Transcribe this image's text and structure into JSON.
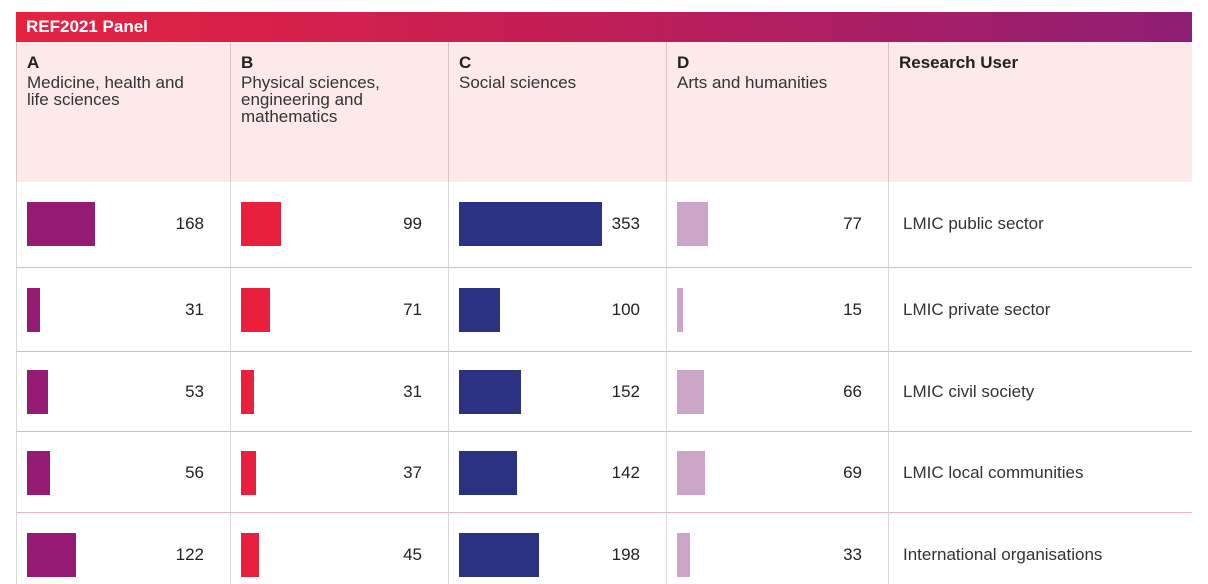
{
  "header": {
    "title": "REF2021 Panel"
  },
  "table": {
    "columns": [
      {
        "letter": "A",
        "name": "Medicine, health and life sciences",
        "color": "#951b74"
      },
      {
        "letter": "B",
        "name": "Physical sciences, engineering and mathematics",
        "color": "#e8203d"
      },
      {
        "letter": "C",
        "name": "Social sciences",
        "color": "#2b3183"
      },
      {
        "letter": "D",
        "name": "Arts and humanities",
        "color": "#cda5c8"
      }
    ],
    "user_header": "Research User",
    "rows": [
      {
        "values": [
          168,
          99,
          353,
          77
        ],
        "user": "LMIC public sector"
      },
      {
        "values": [
          31,
          71,
          100,
          15
        ],
        "user": "LMIC private sector"
      },
      {
        "values": [
          53,
          31,
          152,
          66
        ],
        "user": "LMIC civil society"
      },
      {
        "values": [
          56,
          37,
          142,
          69
        ],
        "user": "LMIC local communities"
      },
      {
        "values": [
          122,
          45,
          198,
          33
        ],
        "user": "International organisations"
      }
    ]
  }
}
